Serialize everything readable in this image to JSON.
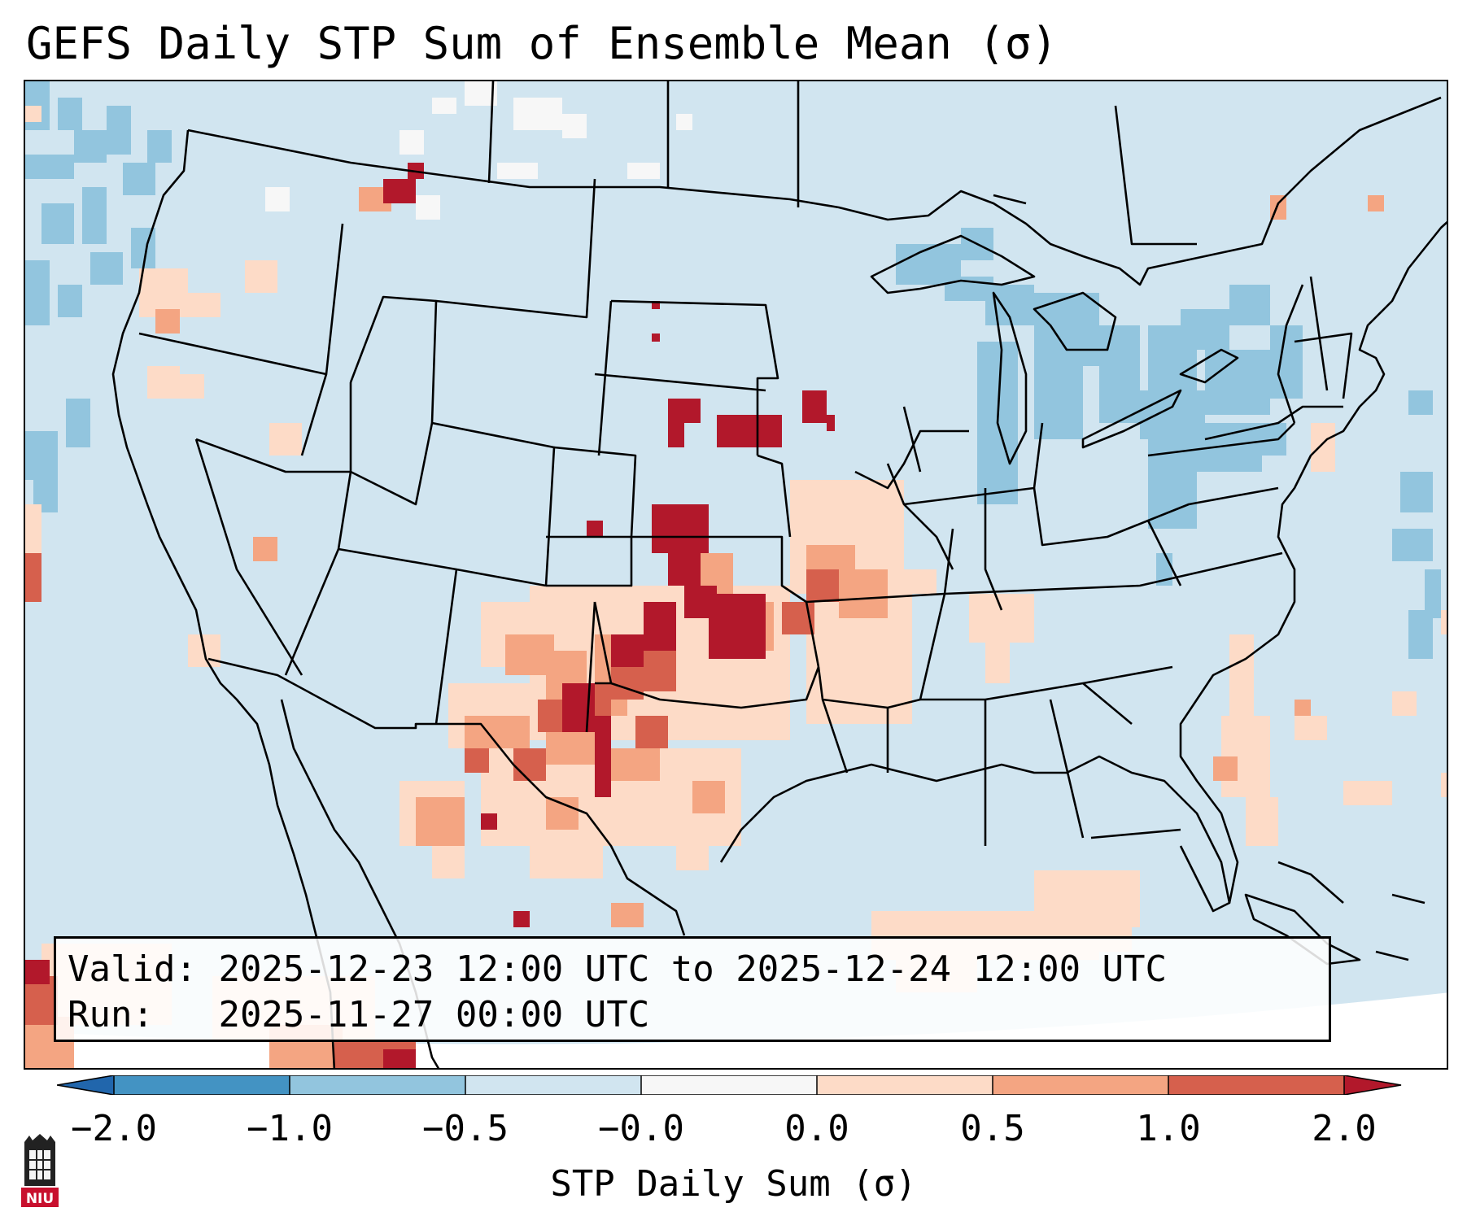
{
  "title": "GEFS Daily STP Sum of Ensemble Mean (σ)",
  "info": {
    "valid_label": "Valid:",
    "valid_value": "2025-12-23 12:00 UTC to 2025-12-24 12:00 UTC",
    "run_label": "Run:",
    "run_value": "2025-11-27 00:00 UTC"
  },
  "colorbar": {
    "label": "STP Daily Sum (σ)",
    "ticks": [
      "−2.0",
      "−1.0",
      "−0.5",
      "−0.0",
      "0.0",
      "0.5",
      "1.0",
      "2.0"
    ],
    "bins": [
      {
        "range": "< -2.0",
        "color": "#2166ac"
      },
      {
        "range": "-2.0 to -1.0",
        "color": "#4393c3"
      },
      {
        "range": "-1.0 to -0.5",
        "color": "#92c5de"
      },
      {
        "range": "-0.5 to -0.0",
        "color": "#d1e5f0"
      },
      {
        "range": "-0.0 to 0.0",
        "color": "#f7f7f7"
      },
      {
        "range": "0.0 to 0.5",
        "color": "#fddbc7"
      },
      {
        "range": "0.5 to 1.0",
        "color": "#f4a582"
      },
      {
        "range": "1.0 to 2.0",
        "color": "#d6604d"
      },
      {
        "range": "> 2.0",
        "color": "#b2182b"
      }
    ]
  },
  "map": {
    "region": "Contiguous United States",
    "background_color": "#d1e5f0",
    "boundaries": "state and country borders, coastlines",
    "notable_features": [
      {
        "area": "Nebraska",
        "level": "> 2.0"
      },
      {
        "area": "Kansas / Oklahoma",
        "level": "> 2.0"
      },
      {
        "area": "West Texas / New Mexico",
        "level": "1.0 to 2.0"
      },
      {
        "area": "Great Lakes / Northeast",
        "level": "-1.0 to -0.5"
      },
      {
        "area": "Gulf of Mexico",
        "level": "0.0 to 0.5"
      }
    ]
  },
  "logo": {
    "text": "NIU",
    "icon": "niu-logo-icon"
  }
}
